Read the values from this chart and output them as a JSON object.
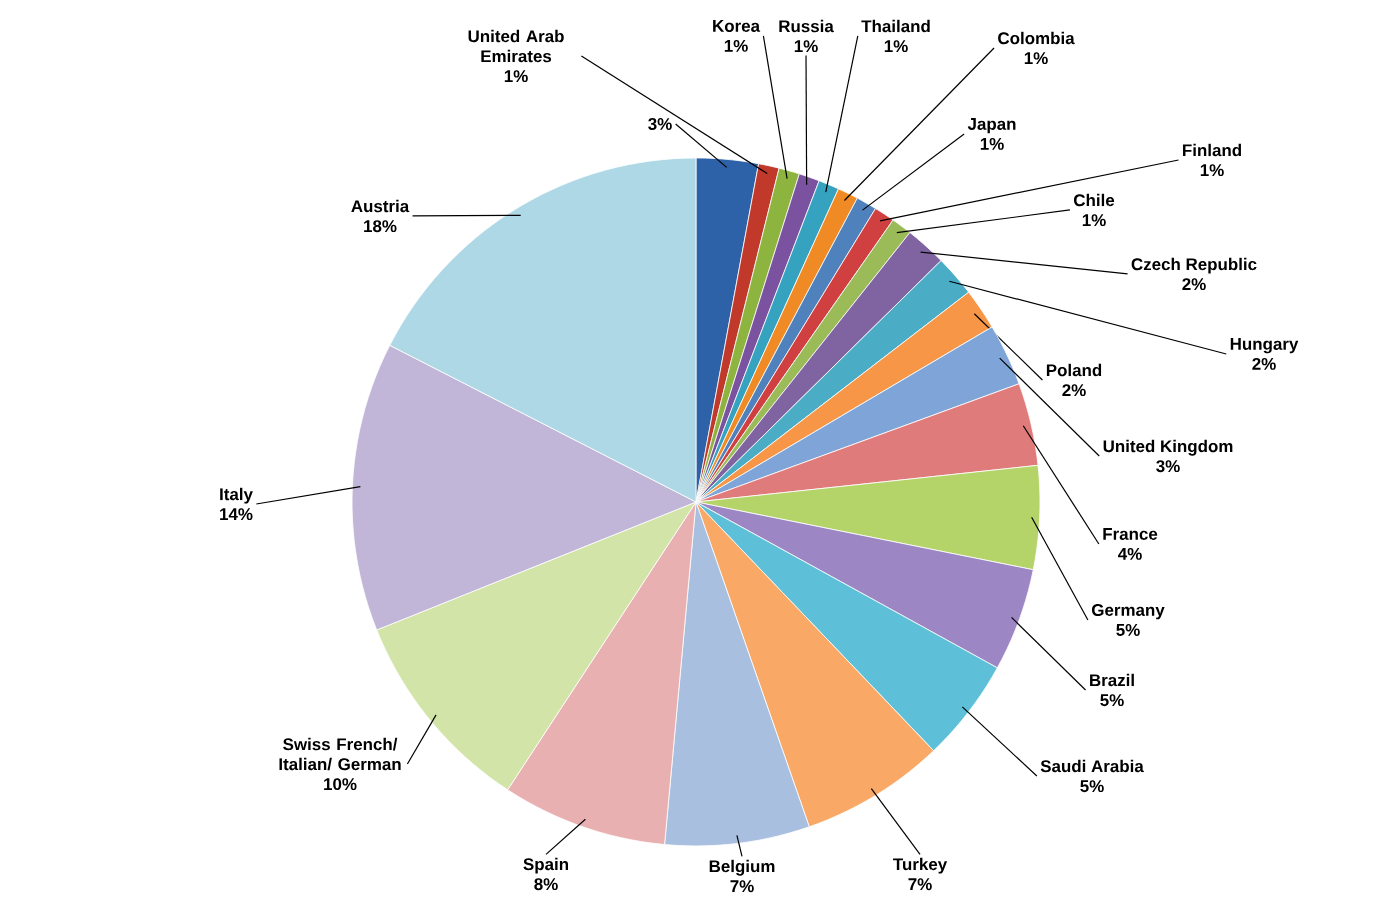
{
  "chart_data": {
    "type": "pie",
    "categories": [
      null,
      "United Arab Emirates",
      "Korea",
      "Russia",
      "Thailand",
      "Colombia",
      "Japan",
      "Finland",
      "Chile",
      "Czech Republic",
      "Hungary",
      "Poland",
      "United Kingdom",
      "France",
      "Germany",
      "Brazil",
      "Saudi Arabia",
      "Turkey",
      "Belgium",
      "Spain",
      "Swiss French/ Italian/ German",
      "Italy",
      "Austria"
    ],
    "values": [
      3,
      1,
      1,
      1,
      1,
      1,
      1,
      1,
      1,
      2,
      2,
      2,
      3,
      4,
      5,
      5,
      5,
      7,
      7,
      8,
      10,
      14,
      18
    ],
    "value_labels": [
      "3%",
      "1%",
      "1%",
      "1%",
      "1%",
      "1%",
      "1%",
      "1%",
      "1%",
      "2%",
      "2%",
      "2%",
      "3%",
      "4%",
      "5%",
      "5%",
      "5%",
      "7%",
      "7%",
      "8%",
      "10%",
      "14%",
      "18%"
    ],
    "colors": [
      "#2e62a8",
      "#c0392b",
      "#8db43e",
      "#7a52a0",
      "#35a3c0",
      "#f08a24",
      "#4f81bd",
      "#d04040",
      "#9bbb59",
      "#8064a2",
      "#4bacc6",
      "#f79646",
      "#7ea4d8",
      "#e07b7b",
      "#b4d46a",
      "#9d86c4",
      "#5ec0d8",
      "#f9a866",
      "#a9bfe0",
      "#e8b0b0",
      "#d2e4a8",
      "#c2b6d8",
      "#aed8e6"
    ]
  }
}
